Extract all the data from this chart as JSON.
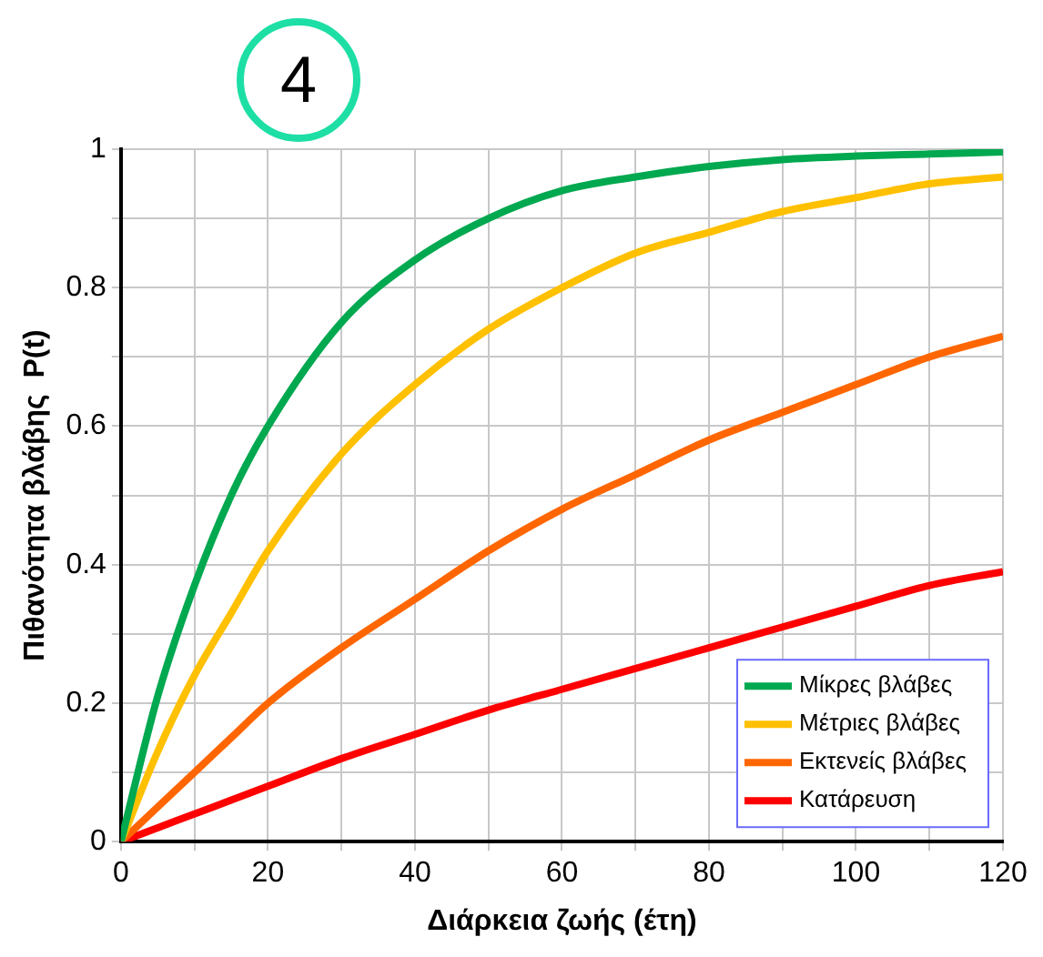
{
  "chart_data": {
    "type": "line",
    "xlabel": "Διάρκεια ζωής (έτη)",
    "ylabel": "Πιθανότητα βλάβης  P(t)",
    "annotations": [
      "4"
    ],
    "x": [
      0,
      5,
      10,
      15,
      20,
      30,
      40,
      50,
      60,
      70,
      80,
      90,
      100,
      110,
      120
    ],
    "series": [
      {
        "name": "Μίκρες βλάβες",
        "color": "#00a84f",
        "values": [
          0,
          0.21,
          0.37,
          0.5,
          0.6,
          0.75,
          0.84,
          0.9,
          0.94,
          0.96,
          0.975,
          0.985,
          0.99,
          0.993,
          0.996
        ]
      },
      {
        "name": "Μέτριες βλάβες",
        "color": "#ffc000",
        "values": [
          0,
          0.13,
          0.24,
          0.33,
          0.42,
          0.56,
          0.66,
          0.74,
          0.8,
          0.85,
          0.88,
          0.91,
          0.93,
          0.95,
          0.96
        ]
      },
      {
        "name": "Εκτενείς βλάβες",
        "color": "#ff6600",
        "values": [
          0,
          0.05,
          0.1,
          0.15,
          0.2,
          0.28,
          0.35,
          0.42,
          0.48,
          0.53,
          0.58,
          0.62,
          0.66,
          0.7,
          0.73
        ]
      },
      {
        "name": "Κατάρευση",
        "color": "#ff0000",
        "values": [
          0,
          0.02,
          0.04,
          0.06,
          0.08,
          0.12,
          0.155,
          0.19,
          0.22,
          0.25,
          0.28,
          0.31,
          0.34,
          0.37,
          0.39
        ]
      }
    ],
    "xlim": [
      0,
      120
    ],
    "xticks": [
      0,
      {
        "value": 10,
        "label": null
      },
      20,
      {
        "value": 30,
        "label": null
      },
      40,
      {
        "value": 50,
        "label": null
      },
      60,
      {
        "value": 70,
        "label": null
      },
      80,
      {
        "value": 90,
        "label": null
      },
      100,
      {
        "value": 110,
        "label": null
      },
      120
    ],
    "ylim": [
      0,
      1
    ],
    "yticks": [
      0,
      {
        "value": 0.1,
        "label": null
      },
      0.2,
      {
        "value": 0.3,
        "label": null
      },
      0.4,
      {
        "value": 0.5,
        "label": null
      },
      0.6,
      {
        "value": 0.7,
        "label": null
      },
      0.8,
      {
        "value": 0.9,
        "label": null
      },
      1
    ],
    "grid": true,
    "legend": "bottom right",
    "marker": "none",
    "line_style": "solid"
  }
}
